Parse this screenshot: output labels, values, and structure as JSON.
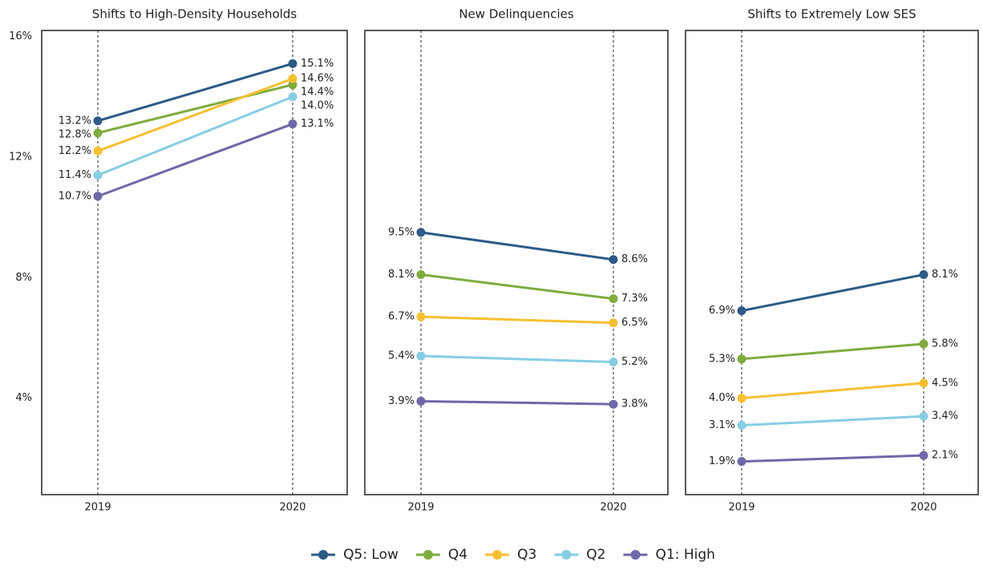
{
  "chart_data": {
    "type": "line",
    "categories": [
      "2019",
      "2020"
    ],
    "ylim": [
      0.8,
      16.2
    ],
    "yticks": [
      {
        "value": 4,
        "label": "4%"
      },
      {
        "value": 8,
        "label": "8%"
      },
      {
        "value": 12,
        "label": "12%"
      },
      {
        "value": 16,
        "label": "16%"
      }
    ],
    "legend": [
      {
        "name": "Q5: Low",
        "color": "#2d5a87"
      },
      {
        "name": "Q4",
        "color": "#7fab3e"
      },
      {
        "name": "Q3",
        "color": "#f5c032"
      },
      {
        "name": "Q2",
        "color": "#87cde3"
      },
      {
        "name": "Q1: High",
        "color": "#6e68a8"
      }
    ],
    "panels": [
      {
        "title": "Shifts to High-Density Households",
        "series": [
          {
            "values": [
              13.2,
              15.1
            ],
            "value_labels": [
              "13.2%",
              "15.1%"
            ]
          },
          {
            "values": [
              12.8,
              14.4
            ],
            "value_labels": [
              "12.8%",
              "14.4%"
            ]
          },
          {
            "values": [
              12.2,
              14.6
            ],
            "value_labels": [
              "12.2%",
              "14.6%"
            ]
          },
          {
            "values": [
              11.4,
              14.0
            ],
            "value_labels": [
              "11.4%",
              "14.0%"
            ]
          },
          {
            "values": [
              10.7,
              13.1
            ],
            "value_labels": [
              "10.7%",
              "13.1%"
            ]
          }
        ]
      },
      {
        "title": "New Delinquencies",
        "series": [
          {
            "values": [
              9.5,
              8.6
            ],
            "value_labels": [
              "9.5%",
              "8.6%"
            ]
          },
          {
            "values": [
              8.1,
              7.3
            ],
            "value_labels": [
              "8.1%",
              "7.3%"
            ]
          },
          {
            "values": [
              6.7,
              6.5
            ],
            "value_labels": [
              "6.7%",
              "6.5%"
            ]
          },
          {
            "values": [
              5.4,
              5.2
            ],
            "value_labels": [
              "5.4%",
              "5.2%"
            ]
          },
          {
            "values": [
              3.9,
              3.8
            ],
            "value_labels": [
              "3.9%",
              "3.8%"
            ]
          }
        ]
      },
      {
        "title": "Shifts to Extremely Low SES",
        "series": [
          {
            "values": [
              6.9,
              8.1
            ],
            "value_labels": [
              "6.9%",
              "8.1%"
            ]
          },
          {
            "values": [
              5.3,
              5.8
            ],
            "value_labels": [
              "5.3%",
              "5.8%"
            ]
          },
          {
            "values": [
              4.0,
              4.5
            ],
            "value_labels": [
              "4.0%",
              "4.5%"
            ]
          },
          {
            "values": [
              3.1,
              3.4
            ],
            "value_labels": [
              "3.1%",
              "3.4%"
            ]
          },
          {
            "values": [
              1.9,
              2.1
            ],
            "value_labels": [
              "1.9%",
              "2.1%"
            ]
          }
        ]
      }
    ]
  }
}
